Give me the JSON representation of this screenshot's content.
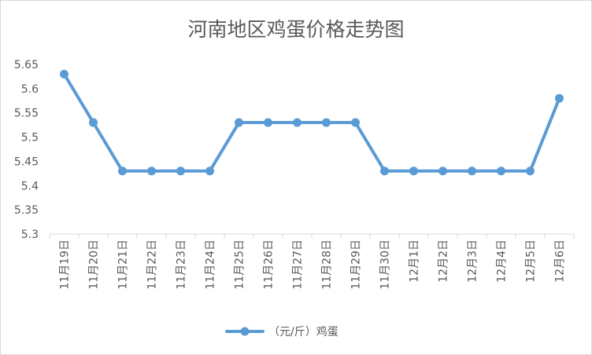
{
  "chart_data": {
    "type": "line",
    "title": "河南地区鸡蛋价格走势图",
    "categories": [
      "11月19日",
      "11月20日",
      "11月21日",
      "11月22日",
      "11月23日",
      "11月24日",
      "11月25日",
      "11月26日",
      "11月27日",
      "11月28日",
      "11月29日",
      "11月30日",
      "12月1日",
      "12月2日",
      "12月3日",
      "12月4日",
      "12月5日",
      "12月6日"
    ],
    "series": [
      {
        "name": "（元/斤）鸡蛋",
        "values": [
          5.63,
          5.53,
          5.43,
          5.43,
          5.43,
          5.43,
          5.53,
          5.53,
          5.53,
          5.53,
          5.53,
          5.43,
          5.43,
          5.43,
          5.43,
          5.43,
          5.43,
          5.58
        ]
      }
    ],
    "yticks": [
      5.3,
      5.35,
      5.4,
      5.45,
      5.5,
      5.55,
      5.6,
      5.65
    ],
    "ylim": [
      5.3,
      5.65
    ],
    "grid": false,
    "legend": "bottom",
    "colors": {
      "series": "#5b9bd5",
      "axis": "#d9d9d9",
      "text": "#595959"
    }
  }
}
